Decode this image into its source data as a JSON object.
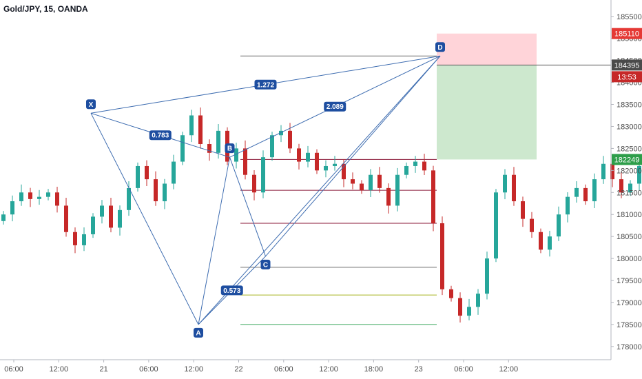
{
  "title": "Gold/JPY, 15, OANDA",
  "colors": {
    "up": "#26a69a",
    "down": "#c62828",
    "pattern": "#3d6cb0",
    "label_bg": "#1e4ea0",
    "red_zone": "#ffcdd2",
    "green_zone": "#c8e6c9",
    "fib_red": "#8b1a3a",
    "fib_grey": "#6e6e6e",
    "fib_olive": "#a6b520",
    "fib_green": "#3aa65c"
  },
  "chart_data": {
    "type": "candlestick",
    "ylim": [
      177700,
      185700
    ],
    "y_ticks": [
      "185500",
      "185000",
      "184500",
      "184000",
      "183500",
      "183000",
      "182500",
      "182000",
      "181500",
      "181000",
      "180500",
      "180000",
      "179500",
      "179000",
      "178500",
      "178000"
    ],
    "x_ticks": [
      "06:00",
      "12:00",
      "21",
      "06:00",
      "12:00",
      "22",
      "06:00",
      "12:00",
      "18:00",
      "23",
      "06:00",
      "12:00"
    ],
    "price_tags": [
      {
        "text": "185110",
        "kind": "stop"
      },
      {
        "text": "184395",
        "kind": "last"
      },
      {
        "text": "13:53",
        "kind": "countdown"
      },
      {
        "text": "182249",
        "kind": "target"
      }
    ],
    "pattern_points": [
      {
        "label": "X",
        "x": 10.0,
        "price": 183300
      },
      {
        "label": "A",
        "x": 22.0,
        "price": 178500
      },
      {
        "label": "B",
        "x": 25.5,
        "price": 182300
      },
      {
        "label": "C",
        "x": 29.5,
        "price": 180050
      },
      {
        "label": "D",
        "x": 49.0,
        "price": 184600
      }
    ],
    "ratios": [
      {
        "text": "0.783",
        "between": [
          "X",
          "B"
        ]
      },
      {
        "text": "0.573",
        "between": [
          "A",
          "C"
        ]
      },
      {
        "text": "2.089",
        "between": [
          "B",
          "D"
        ]
      },
      {
        "text": "1.272",
        "between": [
          "X",
          "D"
        ]
      }
    ],
    "levels": [
      {
        "price": 184600,
        "color": "grey"
      },
      {
        "price": 182249,
        "color": "red"
      },
      {
        "price": 181550,
        "color": "red"
      },
      {
        "price": 180800,
        "color": "red"
      },
      {
        "price": 179800,
        "color": "grey"
      },
      {
        "price": 179170,
        "color": "olive"
      },
      {
        "price": 178500,
        "color": "green"
      }
    ],
    "risk_box": {
      "stop": 185110,
      "entry": 184395,
      "target": 182249
    },
    "series": [
      {
        "type": "candlestick",
        "closes": [
          181000,
          181300,
          181500,
          181350,
          181400,
          181500,
          181200,
          180600,
          180300,
          180550,
          180950,
          181200,
          180700,
          181100,
          181600,
          182100,
          181800,
          181300,
          181700,
          182200,
          182800,
          183250,
          182600,
          182400,
          182900,
          182200,
          182500,
          181900,
          181500,
          182300,
          182800,
          182900,
          182500,
          182200,
          182400,
          182000,
          182100,
          182150,
          181800,
          181700,
          181550,
          181900,
          181600,
          181200,
          181900,
          182100,
          182200,
          182000,
          180800,
          179300,
          179100,
          178700,
          178900,
          179200,
          180000,
          181500,
          181900,
          181300,
          180900,
          180600,
          180200,
          180500,
          181000,
          181400,
          181600,
          181300,
          181800,
          182150,
          181800,
          181500,
          181700,
          182100,
          182200,
          181900,
          181650,
          181500,
          181300,
          181100,
          181300,
          180950,
          181100,
          181500,
          182250,
          182800,
          183250,
          183600,
          183250,
          183200,
          182800,
          182500,
          183400,
          183800,
          184150,
          184395
        ]
      }
    ]
  }
}
